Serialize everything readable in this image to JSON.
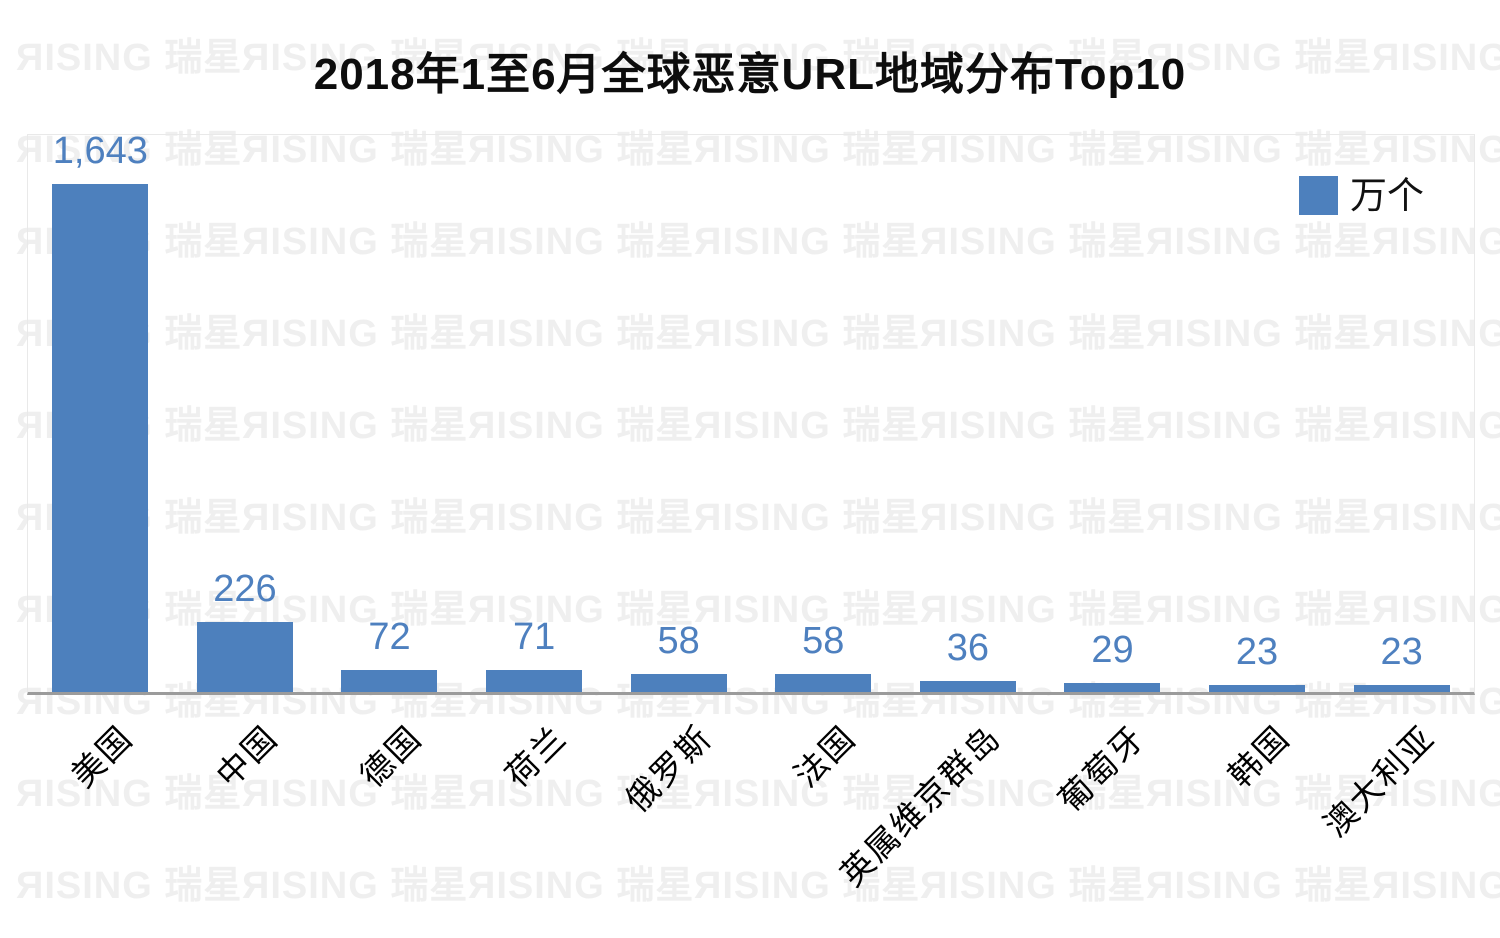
{
  "title": "2018年1至6月全球恶意URL地域分布Top10",
  "legend": {
    "label": "万个"
  },
  "watermark": {
    "tile": "ЯISING 瑞星"
  },
  "colors": {
    "bar": "#4d80bd",
    "value_label": "#4e80bf",
    "axis_line": "#9b9b9b",
    "plot_border": "#e9e9e9",
    "watermark": "#efefef"
  },
  "chart_data": {
    "type": "bar",
    "title": "2018年1至6月全球恶意URL地域分布Top10",
    "unit": "万个",
    "categories": [
      "美国",
      "中国",
      "德国",
      "荷兰",
      "俄罗斯",
      "法国",
      "英属维京群岛",
      "葡萄牙",
      "韩国",
      "澳大利亚"
    ],
    "values": [
      1643,
      226,
      72,
      71,
      58,
      58,
      36,
      29,
      23,
      23
    ],
    "value_labels": [
      "1,643",
      "226",
      "72",
      "71",
      "58",
      "58",
      "36",
      "29",
      "23",
      "23"
    ],
    "xlabel": "",
    "ylabel": "",
    "ylim": [
      0,
      1800
    ],
    "grid": false,
    "data_labels": true,
    "legend_position": "top-right",
    "bar_color": "#4d80bd"
  }
}
